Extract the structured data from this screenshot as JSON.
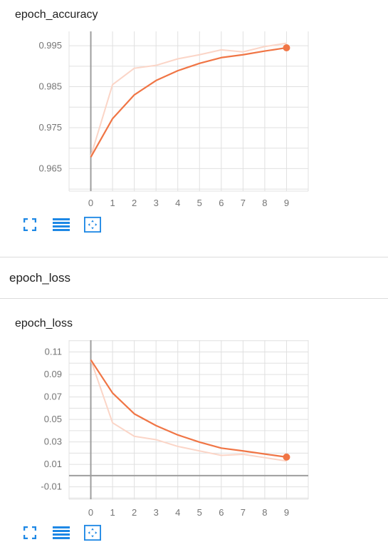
{
  "accuracy_card": {
    "title": "epoch_accuracy"
  },
  "section": {
    "title": "epoch_loss"
  },
  "loss_card": {
    "title": "epoch_loss"
  },
  "colors": {
    "smoothed": "#f07545",
    "raw": "#fbd5c7",
    "grid": "#e0e0e0",
    "axis": "#9e9e9e",
    "icon": "#1e88e5"
  },
  "toolbar": {
    "icons": [
      "fullscreen-icon",
      "list-icon",
      "fit-domain-icon"
    ]
  },
  "chart_data": [
    {
      "type": "line",
      "title": "epoch_accuracy",
      "x": [
        0,
        1,
        2,
        3,
        4,
        5,
        6,
        7,
        8,
        9
      ],
      "x_ticks": [
        "0",
        "1",
        "2",
        "3",
        "4",
        "5",
        "6",
        "7",
        "8",
        "9"
      ],
      "y_ticks": [
        "0.995",
        "0.985",
        "0.975",
        "0.965"
      ],
      "ylim": [
        0.9595,
        0.9985
      ],
      "xlim": [
        -1,
        10
      ],
      "grid": true,
      "series": [
        {
          "values": [
            0.968,
            0.9855,
            0.9895,
            0.9902,
            0.9918,
            0.9928,
            0.994,
            0.9935,
            0.9948,
            0.9956
          ]
        },
        {
          "values": [
            0.9678,
            0.9772,
            0.983,
            0.9865,
            0.9889,
            0.9907,
            0.9921,
            0.9928,
            0.9937,
            0.9945
          ]
        }
      ]
    },
    {
      "type": "line",
      "title": "epoch_loss",
      "x": [
        0,
        1,
        2,
        3,
        4,
        5,
        6,
        7,
        8,
        9
      ],
      "x_ticks": [
        "0",
        "1",
        "2",
        "3",
        "4",
        "5",
        "6",
        "7",
        "8",
        "9"
      ],
      "y_ticks": [
        "0.11",
        "0.09",
        "0.07",
        "0.05",
        "0.03",
        "0.01",
        "-0.01"
      ],
      "ylim": [
        -0.021,
        0.1205
      ],
      "xlim": [
        -1,
        10
      ],
      "grid": true,
      "series": [
        {
          "values": [
            0.103,
            0.047,
            0.035,
            0.032,
            0.026,
            0.022,
            0.018,
            0.019,
            0.016,
            0.013
          ]
        },
        {
          "values": [
            0.103,
            0.0735,
            0.055,
            0.0445,
            0.0362,
            0.0298,
            0.0245,
            0.022,
            0.0192,
            0.0165
          ]
        }
      ]
    }
  ]
}
